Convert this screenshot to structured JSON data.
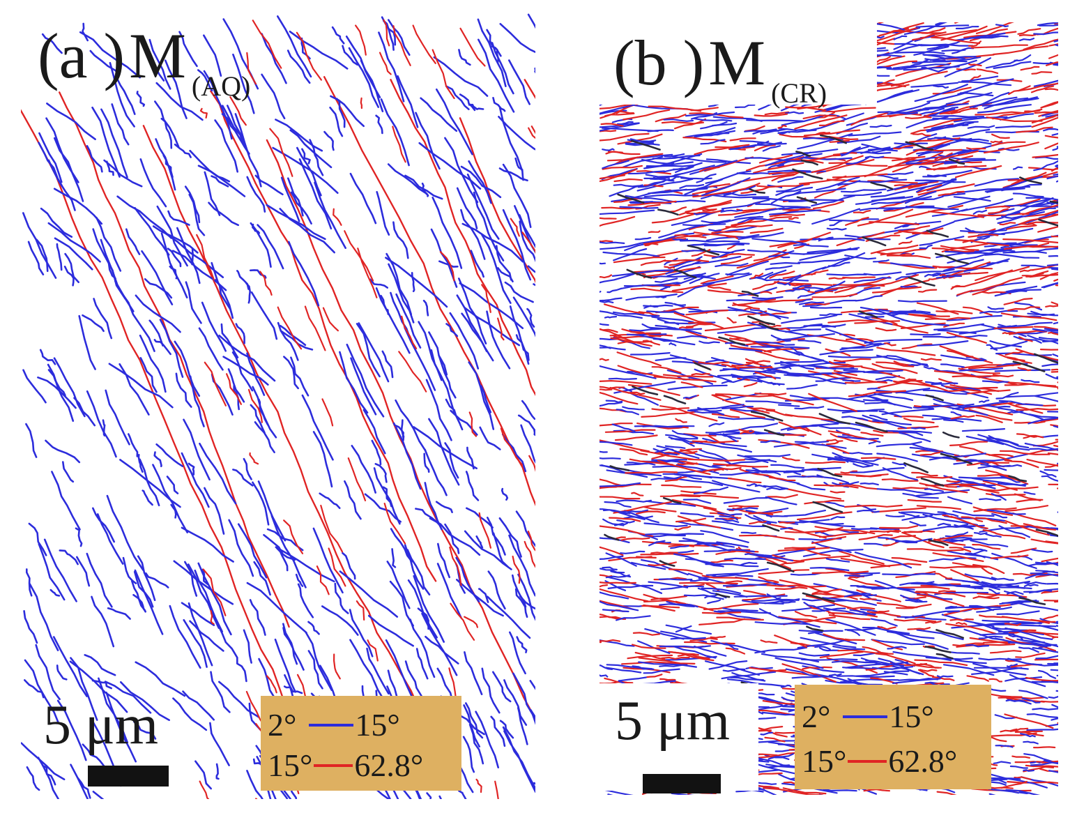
{
  "colors": {
    "low_angle_boundary": "#2c2cdc",
    "high_angle_boundary": "#e02424",
    "legend_background": "#deb061",
    "scale_bar": "#121212"
  },
  "panels": [
    {
      "label": "(a )",
      "symbol": "M",
      "subscript": "(AQ)",
      "scale_text": "5 μm",
      "legend": {
        "row1_min": "2°",
        "row1_max": "15°",
        "row2_min": "15°",
        "row2_max": "62.8°"
      }
    },
    {
      "label": "(b )",
      "symbol": "M",
      "subscript": "(CR)",
      "scale_text": "5 μm",
      "legend": {
        "row1_min": "2°",
        "row1_max": "15°",
        "row2_min": "15°",
        "row2_max": "62.8°"
      }
    }
  ]
}
